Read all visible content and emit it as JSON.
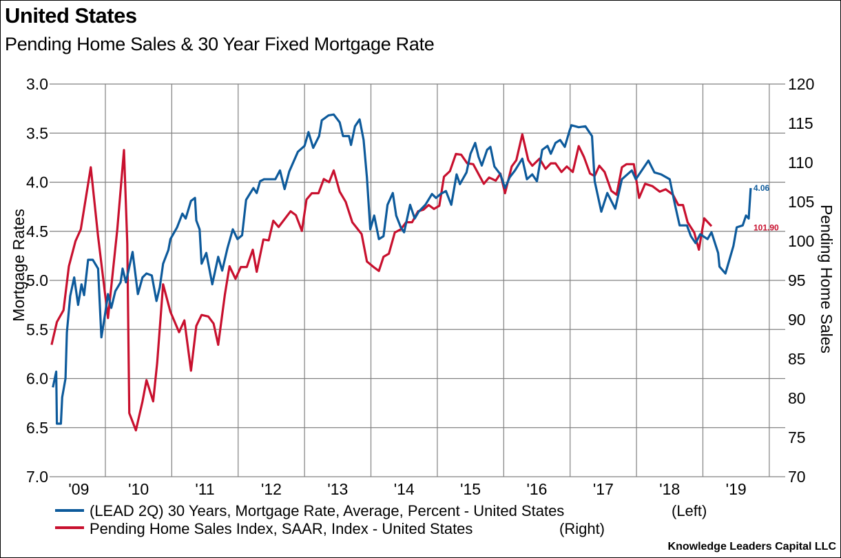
{
  "header": {
    "title": "United States",
    "subtitle": "Pending Home Sales & 30 Year Fixed Mortgage Rate"
  },
  "credit": "Knowledge Leaders Capital LLC",
  "colors": {
    "mortgage": "#0d5a9b",
    "sales": "#c8102e",
    "grid": "#808080"
  },
  "chart_data": {
    "type": "line",
    "title": "United States",
    "subtitle": "Pending Home Sales & 30 Year Fixed Mortgage Rate",
    "xlabel": "",
    "xlim": [
      2009.16,
      2020.24
    ],
    "x_ticks": [
      2009,
      2010,
      2011,
      2012,
      2013,
      2014,
      2015,
      2016,
      2017,
      2018,
      2019
    ],
    "x_tick_labels": [
      "'09",
      "'10",
      "'11",
      "'12",
      "'13",
      "'14",
      "'15",
      "'16",
      "'17",
      "'18",
      "'19"
    ],
    "grid": true,
    "legend_position": "bottom",
    "y_left": {
      "label": "Mortgage Rates",
      "range": [
        3.0,
        7.0
      ],
      "inverted": true,
      "ticks": [
        3.0,
        3.5,
        4.0,
        4.5,
        5.0,
        5.5,
        6.0,
        6.5,
        7.0
      ],
      "tick_labels": [
        "3.0",
        "3.5",
        "4.0",
        "4.5",
        "5.0",
        "5.5",
        "6.0",
        "6.5",
        "7.0"
      ]
    },
    "y_right": {
      "label": "Pending Home Sales",
      "range": [
        70,
        120
      ],
      "ticks": [
        70,
        75,
        80,
        85,
        90,
        95,
        100,
        105,
        110,
        115,
        120
      ],
      "tick_labels": [
        "70",
        "75",
        "80",
        "85",
        "90",
        "95",
        "100",
        "105",
        "110",
        "115",
        "120"
      ]
    },
    "series": [
      {
        "name": "(LEAD 2Q) 30 Years, Mortgage Rate, Average, Percent - United States",
        "axis_label": "(Left)",
        "axis": "left",
        "last_value_label": "4.06",
        "points": [
          [
            2009.21,
            6.09
          ],
          [
            2009.26,
            5.93
          ],
          [
            2009.27,
            6.46
          ],
          [
            2009.33,
            6.46
          ],
          [
            2009.35,
            6.19
          ],
          [
            2009.4,
            6.0
          ],
          [
            2009.42,
            5.53
          ],
          [
            2009.47,
            5.16
          ],
          [
            2009.53,
            4.97
          ],
          [
            2009.59,
            5.25
          ],
          [
            2009.64,
            5.04
          ],
          [
            2009.68,
            5.15
          ],
          [
            2009.74,
            4.79
          ],
          [
            2009.81,
            4.79
          ],
          [
            2009.89,
            4.88
          ],
          [
            2009.94,
            5.58
          ],
          [
            2009.99,
            5.37
          ],
          [
            2010.04,
            5.14
          ],
          [
            2010.09,
            5.28
          ],
          [
            2010.15,
            5.11
          ],
          [
            2010.23,
            5.02
          ],
          [
            2010.26,
            4.88
          ],
          [
            2010.31,
            5.02
          ],
          [
            2010.41,
            4.71
          ],
          [
            2010.49,
            5.14
          ],
          [
            2010.56,
            4.97
          ],
          [
            2010.62,
            4.93
          ],
          [
            2010.7,
            4.95
          ],
          [
            2010.77,
            5.21
          ],
          [
            2010.82,
            5.07
          ],
          [
            2010.87,
            4.83
          ],
          [
            2010.95,
            4.69
          ],
          [
            2010.98,
            4.58
          ],
          [
            2011.08,
            4.46
          ],
          [
            2011.16,
            4.32
          ],
          [
            2011.21,
            4.37
          ],
          [
            2011.29,
            4.19
          ],
          [
            2011.35,
            4.16
          ],
          [
            2011.37,
            4.39
          ],
          [
            2011.42,
            4.48
          ],
          [
            2011.45,
            4.83
          ],
          [
            2011.52,
            4.72
          ],
          [
            2011.61,
            5.04
          ],
          [
            2011.7,
            4.76
          ],
          [
            2011.76,
            4.9
          ],
          [
            2011.84,
            4.67
          ],
          [
            2011.92,
            4.48
          ],
          [
            2011.99,
            4.58
          ],
          [
            2012.06,
            4.54
          ],
          [
            2012.12,
            4.18
          ],
          [
            2012.23,
            4.06
          ],
          [
            2012.28,
            4.11
          ],
          [
            2012.33,
            3.99
          ],
          [
            2012.39,
            3.97
          ],
          [
            2012.56,
            3.97
          ],
          [
            2012.63,
            3.88
          ],
          [
            2012.7,
            4.07
          ],
          [
            2012.77,
            3.89
          ],
          [
            2012.9,
            3.69
          ],
          [
            2013.0,
            3.63
          ],
          [
            2013.06,
            3.49
          ],
          [
            2013.13,
            3.65
          ],
          [
            2013.22,
            3.53
          ],
          [
            2013.26,
            3.37
          ],
          [
            2013.36,
            3.32
          ],
          [
            2013.44,
            3.31
          ],
          [
            2013.53,
            3.39
          ],
          [
            2013.58,
            3.53
          ],
          [
            2013.67,
            3.53
          ],
          [
            2013.7,
            3.62
          ],
          [
            2013.76,
            3.43
          ],
          [
            2013.83,
            3.36
          ],
          [
            2013.89,
            3.57
          ],
          [
            2013.94,
            3.95
          ],
          [
            2013.99,
            4.48
          ],
          [
            2014.05,
            4.34
          ],
          [
            2014.12,
            4.58
          ],
          [
            2014.19,
            4.55
          ],
          [
            2014.25,
            4.23
          ],
          [
            2014.33,
            4.11
          ],
          [
            2014.38,
            4.34
          ],
          [
            2014.45,
            4.46
          ],
          [
            2014.5,
            4.51
          ],
          [
            2014.59,
            4.23
          ],
          [
            2014.66,
            4.37
          ],
          [
            2014.72,
            4.3
          ],
          [
            2014.82,
            4.23
          ],
          [
            2014.92,
            4.12
          ],
          [
            2014.98,
            4.16
          ],
          [
            2015.05,
            4.12
          ],
          [
            2015.13,
            4.09
          ],
          [
            2015.21,
            4.23
          ],
          [
            2015.29,
            3.92
          ],
          [
            2015.34,
            4.02
          ],
          [
            2015.44,
            3.9
          ],
          [
            2015.5,
            3.71
          ],
          [
            2015.57,
            3.6
          ],
          [
            2015.62,
            3.74
          ],
          [
            2015.67,
            3.83
          ],
          [
            2015.75,
            3.67
          ],
          [
            2015.8,
            3.64
          ],
          [
            2015.86,
            3.84
          ],
          [
            2015.95,
            3.92
          ],
          [
            2016.02,
            4.06
          ],
          [
            2016.09,
            3.95
          ],
          [
            2016.17,
            3.88
          ],
          [
            2016.28,
            3.76
          ],
          [
            2016.35,
            3.97
          ],
          [
            2016.43,
            3.92
          ],
          [
            2016.5,
            3.99
          ],
          [
            2016.58,
            3.67
          ],
          [
            2016.66,
            3.63
          ],
          [
            2016.71,
            3.71
          ],
          [
            2016.78,
            3.6
          ],
          [
            2016.85,
            3.57
          ],
          [
            2016.92,
            3.64
          ],
          [
            2016.99,
            3.48
          ],
          [
            2017.02,
            3.42
          ],
          [
            2017.13,
            3.44
          ],
          [
            2017.23,
            3.43
          ],
          [
            2017.3,
            3.5
          ],
          [
            2017.33,
            3.53
          ],
          [
            2017.37,
            3.99
          ],
          [
            2017.47,
            4.3
          ],
          [
            2017.56,
            4.11
          ],
          [
            2017.68,
            4.27
          ],
          [
            2017.78,
            3.97
          ],
          [
            2017.93,
            3.88
          ],
          [
            2017.99,
            3.97
          ],
          [
            2018.18,
            3.78
          ],
          [
            2018.27,
            3.9
          ],
          [
            2018.37,
            3.92
          ],
          [
            2018.5,
            3.97
          ],
          [
            2018.58,
            4.23
          ],
          [
            2018.65,
            4.44
          ],
          [
            2018.76,
            4.44
          ],
          [
            2018.82,
            4.55
          ],
          [
            2018.89,
            4.62
          ],
          [
            2018.96,
            4.53
          ],
          [
            2019.07,
            4.58
          ],
          [
            2019.13,
            4.51
          ],
          [
            2019.23,
            4.72
          ],
          [
            2019.25,
            4.86
          ],
          [
            2019.34,
            4.93
          ],
          [
            2019.46,
            4.65
          ],
          [
            2019.51,
            4.46
          ],
          [
            2019.6,
            4.44
          ],
          [
            2019.65,
            4.34
          ],
          [
            2019.69,
            4.37
          ],
          [
            2019.72,
            4.06
          ]
        ]
      },
      {
        "name": "Pending Home Sales Index, SAAR, Index - United States",
        "axis_label": "(Right)",
        "axis": "right",
        "last_value_label": "101.90",
        "points": [
          [
            2009.19,
            86.8
          ],
          [
            2009.27,
            89.7
          ],
          [
            2009.37,
            91.2
          ],
          [
            2009.45,
            96.8
          ],
          [
            2009.55,
            100.0
          ],
          [
            2009.63,
            101.5
          ],
          [
            2009.78,
            109.4
          ],
          [
            2009.89,
            100.6
          ],
          [
            2010.04,
            90.2
          ],
          [
            2010.18,
            101.5
          ],
          [
            2010.28,
            111.6
          ],
          [
            2010.33,
            99.7
          ],
          [
            2010.36,
            78.1
          ],
          [
            2010.46,
            75.9
          ],
          [
            2010.56,
            79.6
          ],
          [
            2010.62,
            82.3
          ],
          [
            2010.72,
            79.6
          ],
          [
            2010.78,
            84.5
          ],
          [
            2010.87,
            94.5
          ],
          [
            2010.98,
            91.0
          ],
          [
            2011.11,
            88.4
          ],
          [
            2011.19,
            89.9
          ],
          [
            2011.29,
            83.5
          ],
          [
            2011.37,
            89.2
          ],
          [
            2011.45,
            90.6
          ],
          [
            2011.55,
            90.4
          ],
          [
            2011.63,
            89.5
          ],
          [
            2011.7,
            86.8
          ],
          [
            2011.8,
            93.2
          ],
          [
            2011.87,
            96.8
          ],
          [
            2011.96,
            95.2
          ],
          [
            2012.04,
            96.7
          ],
          [
            2012.13,
            96.7
          ],
          [
            2012.22,
            98.9
          ],
          [
            2012.28,
            96.1
          ],
          [
            2012.38,
            100.2
          ],
          [
            2012.46,
            100.1
          ],
          [
            2012.53,
            102.6
          ],
          [
            2012.61,
            101.8
          ],
          [
            2012.79,
            103.8
          ],
          [
            2012.87,
            103.3
          ],
          [
            2012.96,
            101.3
          ],
          [
            2013.03,
            105.3
          ],
          [
            2013.11,
            106.1
          ],
          [
            2013.21,
            106.1
          ],
          [
            2013.29,
            107.9
          ],
          [
            2013.37,
            107.5
          ],
          [
            2013.44,
            109.0
          ],
          [
            2013.53,
            106.3
          ],
          [
            2013.62,
            105.0
          ],
          [
            2013.72,
            102.4
          ],
          [
            2013.86,
            100.9
          ],
          [
            2013.94,
            97.4
          ],
          [
            2014.04,
            96.7
          ],
          [
            2014.12,
            96.2
          ],
          [
            2014.19,
            98.0
          ],
          [
            2014.27,
            98.4
          ],
          [
            2014.36,
            101.1
          ],
          [
            2014.45,
            101.5
          ],
          [
            2014.53,
            102.4
          ],
          [
            2014.62,
            102.4
          ],
          [
            2014.71,
            103.8
          ],
          [
            2014.79,
            104.0
          ],
          [
            2014.87,
            104.6
          ],
          [
            2014.95,
            104.1
          ],
          [
            2015.03,
            104.5
          ],
          [
            2015.1,
            108.2
          ],
          [
            2015.19,
            108.9
          ],
          [
            2015.28,
            111.1
          ],
          [
            2015.36,
            111.0
          ],
          [
            2015.45,
            109.9
          ],
          [
            2015.54,
            109.8
          ],
          [
            2015.7,
            107.3
          ],
          [
            2015.78,
            108.1
          ],
          [
            2015.88,
            107.7
          ],
          [
            2015.95,
            108.6
          ],
          [
            2016.02,
            106.1
          ],
          [
            2016.12,
            109.5
          ],
          [
            2016.19,
            110.3
          ],
          [
            2016.28,
            113.6
          ],
          [
            2016.37,
            110.3
          ],
          [
            2016.43,
            109.6
          ],
          [
            2016.54,
            110.5
          ],
          [
            2016.63,
            109.2
          ],
          [
            2016.71,
            109.9
          ],
          [
            2016.78,
            109.9
          ],
          [
            2016.87,
            108.8
          ],
          [
            2016.95,
            109.5
          ],
          [
            2017.04,
            108.8
          ],
          [
            2017.13,
            112.1
          ],
          [
            2017.21,
            110.7
          ],
          [
            2017.3,
            108.6
          ],
          [
            2017.37,
            108.3
          ],
          [
            2017.44,
            109.6
          ],
          [
            2017.52,
            108.8
          ],
          [
            2017.62,
            106.4
          ],
          [
            2017.7,
            105.9
          ],
          [
            2017.78,
            109.4
          ],
          [
            2017.85,
            109.8
          ],
          [
            2017.96,
            109.8
          ],
          [
            2018.04,
            105.5
          ],
          [
            2018.13,
            107.3
          ],
          [
            2018.24,
            107.0
          ],
          [
            2018.35,
            106.3
          ],
          [
            2018.44,
            106.6
          ],
          [
            2018.55,
            105.9
          ],
          [
            2018.63,
            104.6
          ],
          [
            2018.7,
            104.6
          ],
          [
            2018.77,
            102.4
          ],
          [
            2018.87,
            101.1
          ],
          [
            2018.94,
            98.9
          ],
          [
            2019.02,
            102.9
          ],
          [
            2019.13,
            101.9
          ]
        ]
      }
    ]
  }
}
